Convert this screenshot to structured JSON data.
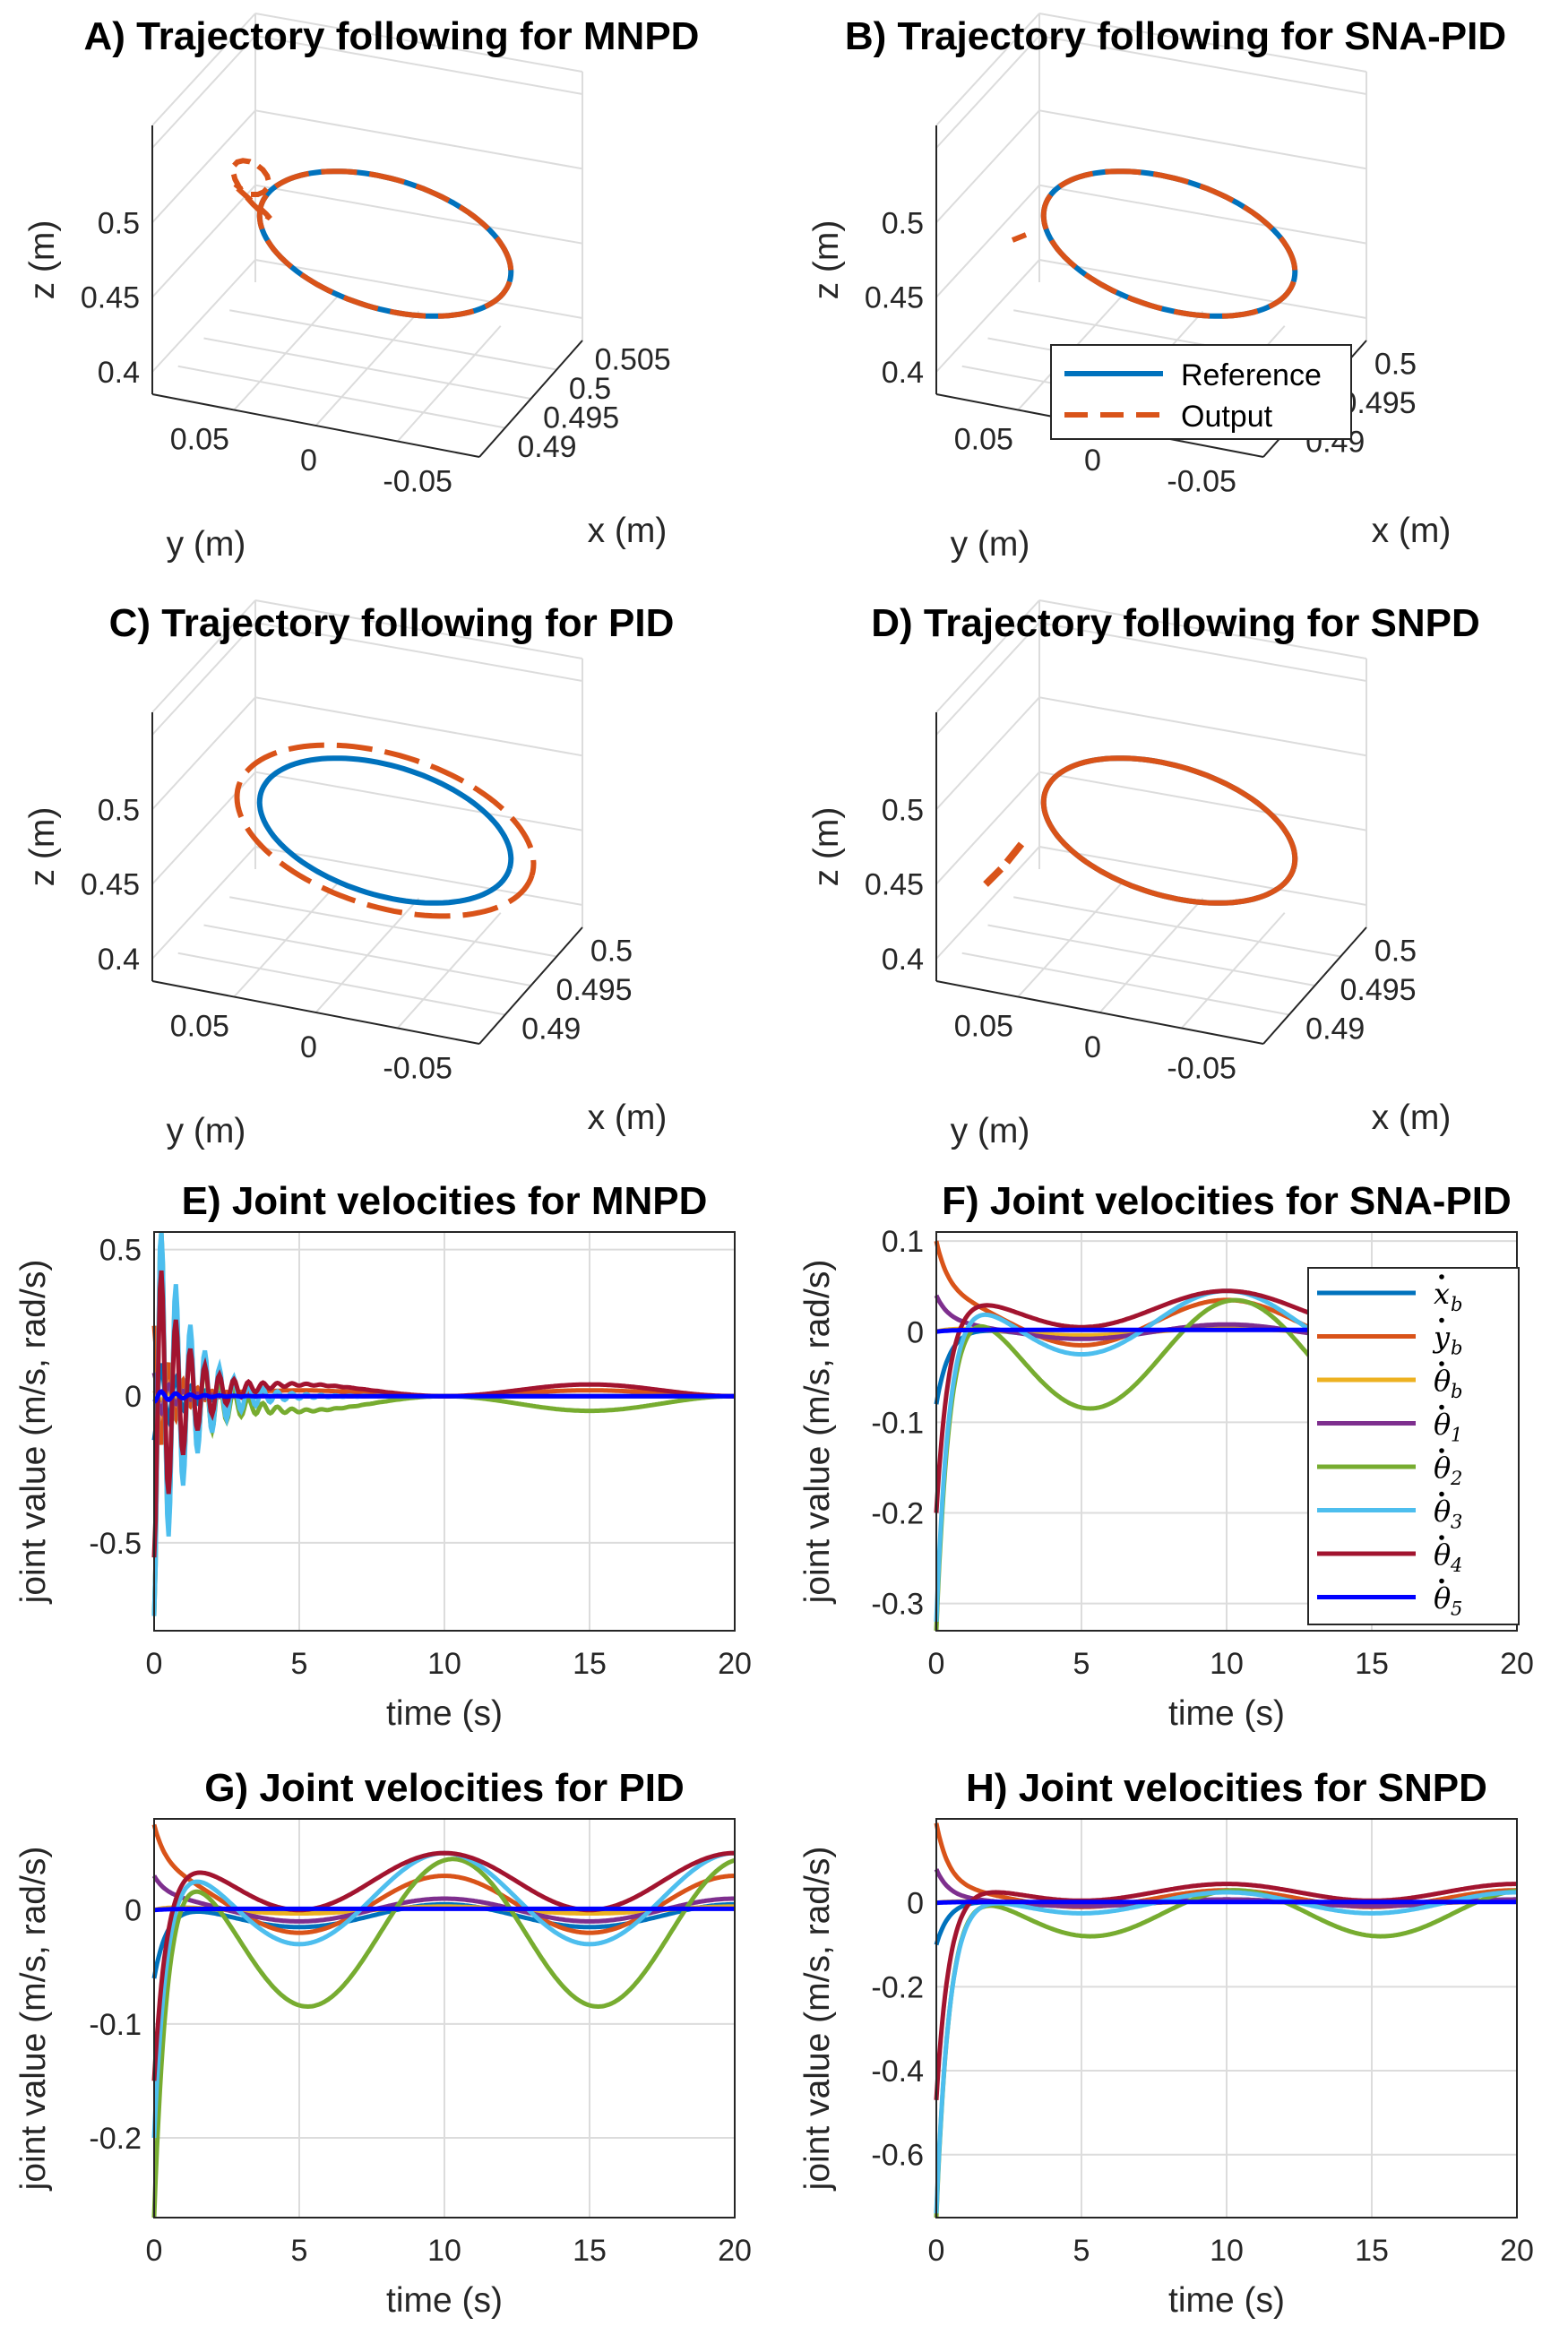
{
  "colors": {
    "reference": "#0072BD",
    "output": "#D95319",
    "grid": "#dcdcdc",
    "axis": "#262626",
    "series": [
      "#0072BD",
      "#D95319",
      "#EDB120",
      "#7E2F8E",
      "#77AC30",
      "#4DBEEE",
      "#A2142F",
      "#0000FF"
    ]
  },
  "chart_data": [
    {
      "id": "A",
      "type": "line3d",
      "title": "A) Trajectory following for MNPD",
      "xlabel": "x (m)",
      "ylabel": "y (m)",
      "zlabel": "z (m)",
      "xlim": [
        0.485,
        0.51
      ],
      "ylim": [
        -0.075,
        0.075
      ],
      "zlim": [
        0.39,
        0.55
      ],
      "xticks": [
        "0.49",
        "0.495",
        "0.5",
        "0.505"
      ],
      "yticks": [
        "0.05",
        "0",
        "-0.05"
      ],
      "zticks": [
        "0.4",
        "0.45",
        "0.5"
      ],
      "reference": {
        "center": [
          0.5,
          0.0,
          0.5
        ],
        "radius": 0.05
      },
      "output": {
        "center": [
          0.5,
          0.0,
          0.5
        ],
        "radius": 0.05,
        "offset": [
          0,
          0,
          0
        ],
        "transient": "oscillatory"
      },
      "legend": null
    },
    {
      "id": "B",
      "type": "line3d",
      "title": "B) Trajectory following for SNA-PID",
      "xlabel": "x (m)",
      "ylabel": "y (m)",
      "zlabel": "z (m)",
      "xlim": [
        0.485,
        0.505
      ],
      "ylim": [
        -0.075,
        0.075
      ],
      "zlim": [
        0.39,
        0.55
      ],
      "xticks": [
        "0.49",
        "0.495",
        "0.5"
      ],
      "yticks": [
        "0.05",
        "0",
        "-0.05"
      ],
      "zticks": [
        "0.4",
        "0.45",
        "0.5"
      ],
      "reference": {
        "center": [
          0.5,
          0.0,
          0.5
        ],
        "radius": 0.05
      },
      "output": {
        "center": [
          0.5,
          0.0,
          0.5
        ],
        "radius": 0.05,
        "offset": [
          0,
          0,
          0
        ],
        "transient": "short"
      },
      "legend": {
        "reference": "Reference",
        "output": "Output",
        "position": "bottom-center"
      }
    },
    {
      "id": "C",
      "type": "line3d",
      "title": "C) Trajectory following for PID",
      "xlabel": "x (m)",
      "ylabel": "y (m)",
      "zlabel": "z (m)",
      "xlim": [
        0.485,
        0.505
      ],
      "ylim": [
        -0.075,
        0.075
      ],
      "zlim": [
        0.39,
        0.55
      ],
      "xticks": [
        "0.49",
        "0.495",
        "0.5"
      ],
      "yticks": [
        "0.05",
        "0",
        "-0.05"
      ],
      "zticks": [
        "0.4",
        "0.45",
        "0.5"
      ],
      "reference": {
        "center": [
          0.5,
          0.0,
          0.5
        ],
        "radius": 0.05
      },
      "output": {
        "center": [
          0.5,
          0.0,
          0.5
        ],
        "radius": 0.05,
        "offset": [
          0,
          0,
          0
        ],
        "transient": "none",
        "scale": 1.18
      },
      "legend": null
    },
    {
      "id": "D",
      "type": "line3d",
      "title": "D) Trajectory following for SNPD",
      "xlabel": "x (m)",
      "ylabel": "y (m)",
      "zlabel": "z (m)",
      "xlim": [
        0.485,
        0.505
      ],
      "ylim": [
        -0.075,
        0.075
      ],
      "zlim": [
        0.39,
        0.55
      ],
      "xticks": [
        "0.49",
        "0.495",
        "0.5"
      ],
      "yticks": [
        "0.05",
        "0",
        "-0.05"
      ],
      "zticks": [
        "0.4",
        "0.45",
        "0.5"
      ],
      "reference": {
        "center": [
          0.5,
          0.0,
          0.5
        ],
        "radius": 0.05
      },
      "output": {
        "center": [
          0.5,
          0.0,
          0.5
        ],
        "radius": 0.05,
        "offset": [
          0,
          0,
          0
        ],
        "transient": "dash-lead"
      },
      "legend": null
    },
    {
      "id": "E",
      "type": "line",
      "title": "E) Joint velocities for MNPD",
      "xlabel": "time (s)",
      "ylabel": "joint value (m/s, rad/s)",
      "xlim": [
        0,
        20
      ],
      "ylim": [
        -0.8,
        0.56
      ],
      "xticks": [
        "0",
        "5",
        "10",
        "15",
        "20"
      ],
      "yticks": [
        {
          "v": 0.5,
          "t": "0.5"
        },
        {
          "v": 0,
          "t": "0"
        },
        {
          "v": -0.5,
          "t": "-0.5"
        }
      ],
      "series": [
        {
          "amp0": -0.15,
          "decay": 1.2,
          "osc": 2.0,
          "steady": 0.0
        },
        {
          "amp0": 0.24,
          "decay": 1.5,
          "osc": 2.0,
          "steady": 0.02
        },
        {
          "amp0": 0.02,
          "decay": 1.5,
          "osc": 2.0,
          "steady": 0.0
        },
        {
          "amp0": 0.08,
          "decay": 1.5,
          "osc": 2.0,
          "steady": 0.0
        },
        {
          "amp0": -0.75,
          "decay": 1.0,
          "osc": 2.0,
          "steady": -0.05
        },
        {
          "amp0": -0.75,
          "decay": 0.9,
          "osc": 2.0,
          "steady": 0.0
        },
        {
          "amp0": -0.55,
          "decay": 1.0,
          "osc": 2.0,
          "steady": 0.04
        },
        {
          "amp0": -0.02,
          "decay": 1.0,
          "osc": 2.0,
          "steady": 0.0
        }
      ],
      "legend": null
    },
    {
      "id": "F",
      "type": "line",
      "title": "F) Joint velocities for SNA-PID",
      "xlabel": "time (s)",
      "ylabel": "joint value (m/s, rad/s)",
      "xlim": [
        0,
        20
      ],
      "ylim": [
        -0.33,
        0.11
      ],
      "xticks": [
        "0",
        "5",
        "10",
        "15",
        "20"
      ],
      "yticks": [
        {
          "v": 0.1,
          "t": "0.1"
        },
        {
          "v": 0,
          "t": "0"
        },
        {
          "v": -0.1,
          "t": "-0.1"
        },
        {
          "v": -0.2,
          "t": "-0.2"
        },
        {
          "v": -0.3,
          "t": "-0.3"
        }
      ],
      "series": [
        {
          "amp0": -0.08,
          "steady": 0.0,
          "wave": 0.006
        },
        {
          "amp0": 0.1,
          "steady": 0.01,
          "wave": 0.025
        },
        {
          "amp0": 0.0,
          "steady": 0.0,
          "wave": 0.004
        },
        {
          "amp0": 0.04,
          "steady": 0.0,
          "wave": 0.008
        },
        {
          "amp0": -0.33,
          "steady": -0.025,
          "wave": 0.04
        },
        {
          "amp0": -0.32,
          "steady": 0.01,
          "wave": 0.035
        },
        {
          "amp0": -0.2,
          "steady": 0.025,
          "wave": 0.02
        },
        {
          "amp0": 0.0,
          "steady": 0.002,
          "wave": 0.0
        }
      ],
      "legend": {
        "entries": [
          {
            "base": "x",
            "dot": true,
            "sub": "b"
          },
          {
            "base": "y",
            "dot": true,
            "sub": "b"
          },
          {
            "base": "θ",
            "dot": true,
            "sub": "b"
          },
          {
            "base": "θ",
            "dot": true,
            "sub": "1"
          },
          {
            "base": "θ",
            "dot": true,
            "sub": "2"
          },
          {
            "base": "θ",
            "dot": true,
            "sub": "3"
          },
          {
            "base": "θ",
            "dot": true,
            "sub": "4"
          },
          {
            "base": "θ",
            "dot": true,
            "sub": "5"
          }
        ],
        "position": "right"
      }
    },
    {
      "id": "G",
      "type": "line",
      "title": "G) Joint velocities for PID",
      "xlabel": "time (s)",
      "ylabel": "joint value (m/s, rad/s)",
      "xlim": [
        0,
        20
      ],
      "ylim": [
        -0.27,
        0.08
      ],
      "xticks": [
        "0",
        "5",
        "10",
        "15",
        "20"
      ],
      "yticks": [
        {
          "v": 0,
          "t": "0"
        },
        {
          "v": -0.1,
          "t": "-0.1"
        },
        {
          "v": -0.2,
          "t": "-0.2"
        }
      ],
      "series": [
        {
          "amp0": -0.06,
          "steady": -0.005,
          "wave": 0.01
        },
        {
          "amp0": 0.075,
          "steady": 0.005,
          "wave": 0.025
        },
        {
          "amp0": 0.0,
          "steady": 0.0,
          "wave": 0.003
        },
        {
          "amp0": 0.03,
          "steady": 0.0,
          "wave": 0.01
        },
        {
          "amp0": -0.27,
          "steady": -0.02,
          "wave": 0.045
        },
        {
          "amp0": -0.2,
          "steady": 0.01,
          "wave": 0.04
        },
        {
          "amp0": -0.15,
          "steady": 0.025,
          "wave": 0.025
        },
        {
          "amp0": 0.0,
          "steady": 0.001,
          "wave": 0.0
        }
      ],
      "legend": null
    },
    {
      "id": "H",
      "type": "line",
      "title": "H) Joint velocities for SNPD",
      "xlabel": "time (s)",
      "ylabel": "joint value (m/s, rad/s)",
      "xlim": [
        0,
        20
      ],
      "ylim": [
        -0.75,
        0.2
      ],
      "xticks": [
        "0",
        "5",
        "10",
        "15",
        "20"
      ],
      "yticks": [
        {
          "v": 0,
          "t": "0"
        },
        {
          "v": -0.2,
          "t": "-0.2"
        },
        {
          "v": -0.4,
          "t": "-0.4"
        },
        {
          "v": -0.6,
          "t": "-0.6"
        }
      ],
      "series": [
        {
          "amp0": -0.1,
          "steady": 0.0,
          "wave": 0.008
        },
        {
          "amp0": 0.19,
          "steady": 0.01,
          "wave": 0.02
        },
        {
          "amp0": 0.0,
          "steady": 0.0,
          "wave": 0.004
        },
        {
          "amp0": 0.08,
          "steady": 0.0,
          "wave": 0.008
        },
        {
          "amp0": -0.75,
          "steady": -0.025,
          "wave": 0.035
        },
        {
          "amp0": -0.74,
          "steady": 0.0,
          "wave": 0.025
        },
        {
          "amp0": -0.47,
          "steady": 0.025,
          "wave": 0.02
        },
        {
          "amp0": 0.0,
          "steady": 0.002,
          "wave": 0.0
        }
      ],
      "legend": null
    }
  ]
}
